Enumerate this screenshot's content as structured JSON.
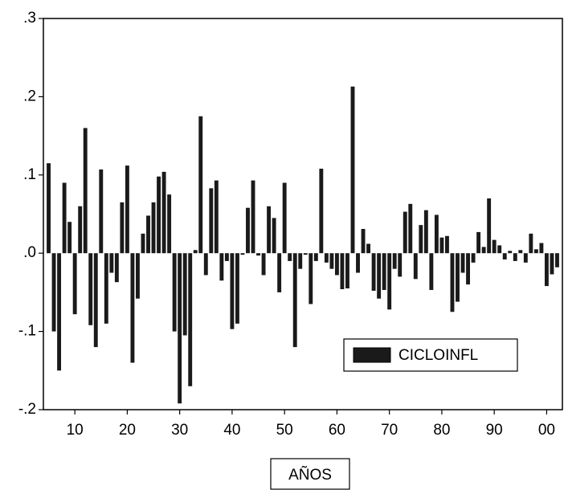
{
  "chart_data": {
    "type": "bar",
    "x": [
      1905,
      1906,
      1907,
      1908,
      1909,
      1910,
      1911,
      1912,
      1913,
      1914,
      1915,
      1916,
      1917,
      1918,
      1919,
      1920,
      1921,
      1922,
      1923,
      1924,
      1925,
      1926,
      1927,
      1928,
      1929,
      1930,
      1931,
      1932,
      1933,
      1934,
      1935,
      1936,
      1937,
      1938,
      1939,
      1940,
      1941,
      1942,
      1943,
      1944,
      1945,
      1946,
      1947,
      1948,
      1949,
      1950,
      1951,
      1952,
      1953,
      1954,
      1955,
      1956,
      1957,
      1958,
      1959,
      1960,
      1961,
      1962,
      1963,
      1964,
      1965,
      1966,
      1967,
      1968,
      1969,
      1970,
      1971,
      1972,
      1973,
      1974,
      1975,
      1976,
      1977,
      1978,
      1979,
      1980,
      1981,
      1982,
      1983,
      1984,
      1985,
      1986,
      1987,
      1988,
      1989,
      1990,
      1991,
      1992,
      1993,
      1994,
      1995,
      1996,
      1997,
      1998,
      1999,
      2000,
      2001,
      2002
    ],
    "series": [
      {
        "name": "CICLOINFL",
        "color": "#1a1a1a",
        "values": [
          0.115,
          -0.1,
          -0.15,
          0.09,
          0.04,
          -0.078,
          0.06,
          0.16,
          -0.092,
          -0.12,
          0.107,
          -0.09,
          -0.025,
          -0.037,
          0.065,
          0.112,
          -0.14,
          -0.058,
          0.025,
          0.048,
          0.065,
          0.098,
          0.104,
          0.075,
          -0.1,
          -0.192,
          -0.105,
          -0.17,
          0.004,
          0.175,
          -0.028,
          0.083,
          0.093,
          -0.035,
          -0.01,
          -0.097,
          -0.09,
          -0.002,
          0.058,
          0.093,
          -0.003,
          -0.028,
          0.06,
          0.045,
          -0.05,
          0.09,
          -0.01,
          -0.12,
          -0.02,
          -0.002,
          -0.065,
          -0.01,
          0.108,
          -0.012,
          -0.02,
          -0.028,
          -0.046,
          -0.045,
          0.213,
          -0.025,
          0.031,
          0.012,
          -0.048,
          -0.058,
          -0.047,
          -0.072,
          -0.02,
          -0.03,
          0.053,
          0.063,
          -0.033,
          0.036,
          0.055,
          -0.047,
          0.049,
          0.02,
          0.022,
          -0.075,
          -0.062,
          -0.025,
          -0.04,
          -0.012,
          0.027,
          0.008,
          0.07,
          0.017,
          0.01,
          -0.008,
          0.003,
          -0.01,
          0.004,
          -0.012,
          0.025,
          0.005,
          0.013,
          -0.042,
          -0.027,
          -0.018
        ]
      }
    ],
    "xlim": [
      1904,
      2003
    ],
    "xticks": [
      {
        "value": 1910,
        "label": "10"
      },
      {
        "value": 1920,
        "label": "20"
      },
      {
        "value": 1930,
        "label": "30"
      },
      {
        "value": 1940,
        "label": "40"
      },
      {
        "value": 1950,
        "label": "50"
      },
      {
        "value": 1960,
        "label": "60"
      },
      {
        "value": 1970,
        "label": "70"
      },
      {
        "value": 1980,
        "label": "80"
      },
      {
        "value": 1990,
        "label": "90"
      },
      {
        "value": 2000,
        "label": "00"
      }
    ],
    "ylim": [
      -0.2,
      0.3
    ],
    "yticks": [
      {
        "value": -0.2,
        "label": "-.2"
      },
      {
        "value": -0.1,
        "label": "-.1"
      },
      {
        "value": 0,
        "label": ".0"
      },
      {
        "value": 0.1,
        "label": ".1"
      },
      {
        "value": 0.2,
        "label": ".2"
      },
      {
        "value": 0.3,
        "label": ".3"
      }
    ],
    "x_label": "AÑOS"
  }
}
